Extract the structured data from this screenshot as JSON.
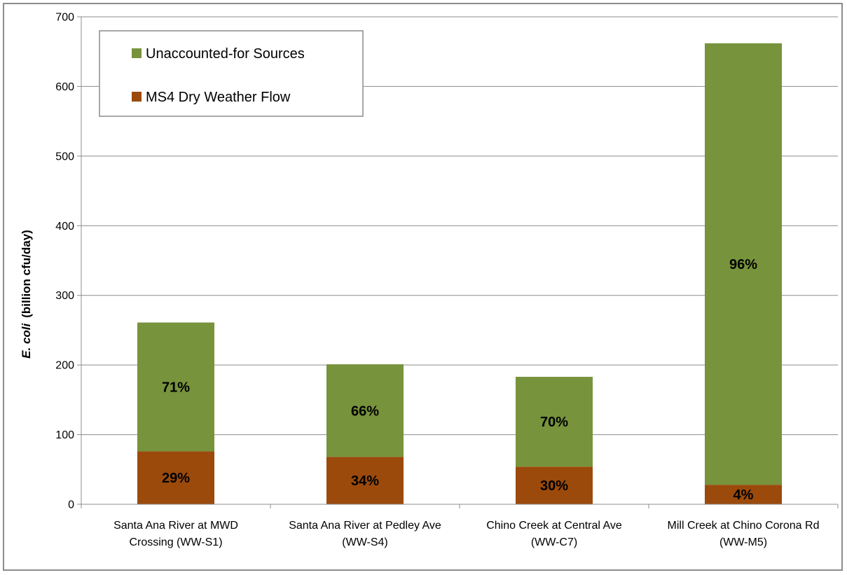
{
  "chart_data": {
    "type": "bar",
    "stacked": true,
    "title": "",
    "ylabel_italic": "E. coli",
    "ylabel_rest": "(billion cfu/day)",
    "xlabel": "",
    "ylim": [
      0,
      700
    ],
    "yticks": [
      0,
      100,
      200,
      300,
      400,
      500,
      600,
      700
    ],
    "grid": true,
    "legend_position": "top-left",
    "categories": [
      [
        "Santa Ana River at MWD",
        "Crossing (WW-S1)"
      ],
      [
        "Santa Ana River at Pedley Ave",
        "(WW-S4)"
      ],
      [
        "Chino Creek at Central Ave",
        "(WW-C7)"
      ],
      [
        "Mill Creek at Chino Corona Rd",
        "(WW-M5)"
      ]
    ],
    "series": [
      {
        "name": "MS4 Dry Weather Flow",
        "color": "#9b4a0c",
        "values": [
          76,
          68,
          54,
          28
        ],
        "labels": [
          "29%",
          "34%",
          "30%",
          "4%"
        ]
      },
      {
        "name": "Unaccounted-for Sources",
        "color": "#77933c",
        "values": [
          185,
          133,
          129,
          634
        ],
        "labels": [
          "71%",
          "66%",
          "70%",
          "96%"
        ]
      }
    ],
    "legend_order": [
      1,
      0
    ]
  }
}
